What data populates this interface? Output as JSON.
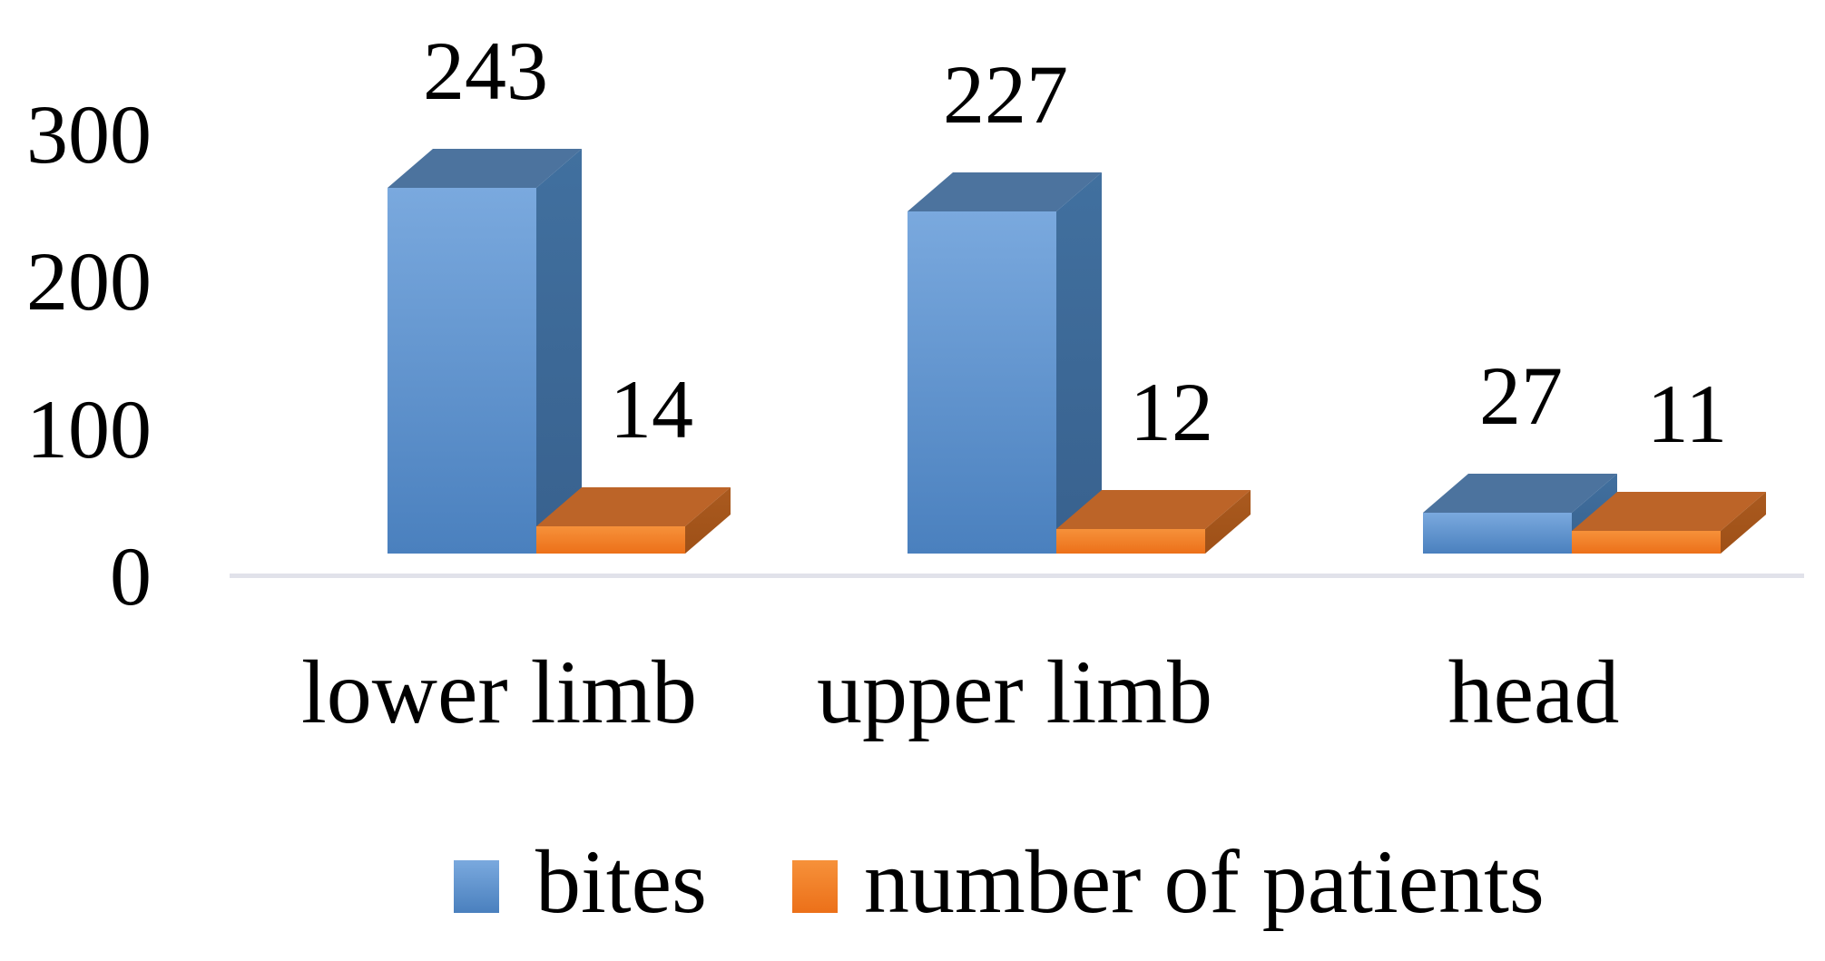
{
  "chart_data": {
    "type": "bar",
    "variant": "3d-clustered-column",
    "title": "",
    "categories": [
      "lower limb",
      "upper limb",
      "head"
    ],
    "series": [
      {
        "name": "bites",
        "color": "#5B9BD5",
        "values": [
          243,
          227,
          27
        ],
        "faces": {
          "front": [
            "#7AA9DE",
            "#4A80BE"
          ],
          "top": "#4C739E",
          "side": [
            "#41709F",
            "#38618E"
          ]
        }
      },
      {
        "name": "number of patients",
        "color": "#ED7D31",
        "values": [
          14,
          12,
          11
        ],
        "faces": {
          "front": [
            "#F6913A",
            "#EC7019"
          ],
          "top": "#BC6428",
          "side": [
            "#AA5A1F",
            "#9E5017"
          ]
        }
      }
    ],
    "y_axis": {
      "ticks": [
        0,
        100,
        200,
        300
      ],
      "lim": [
        0,
        300
      ],
      "gridlines": false
    },
    "legend": {
      "position": "bottom",
      "entries": [
        "bites",
        "number of patients"
      ]
    },
    "data_labels": true,
    "background": "#ffffff",
    "axis_line_color": "#e1e2ea",
    "text_color": "#000000"
  }
}
